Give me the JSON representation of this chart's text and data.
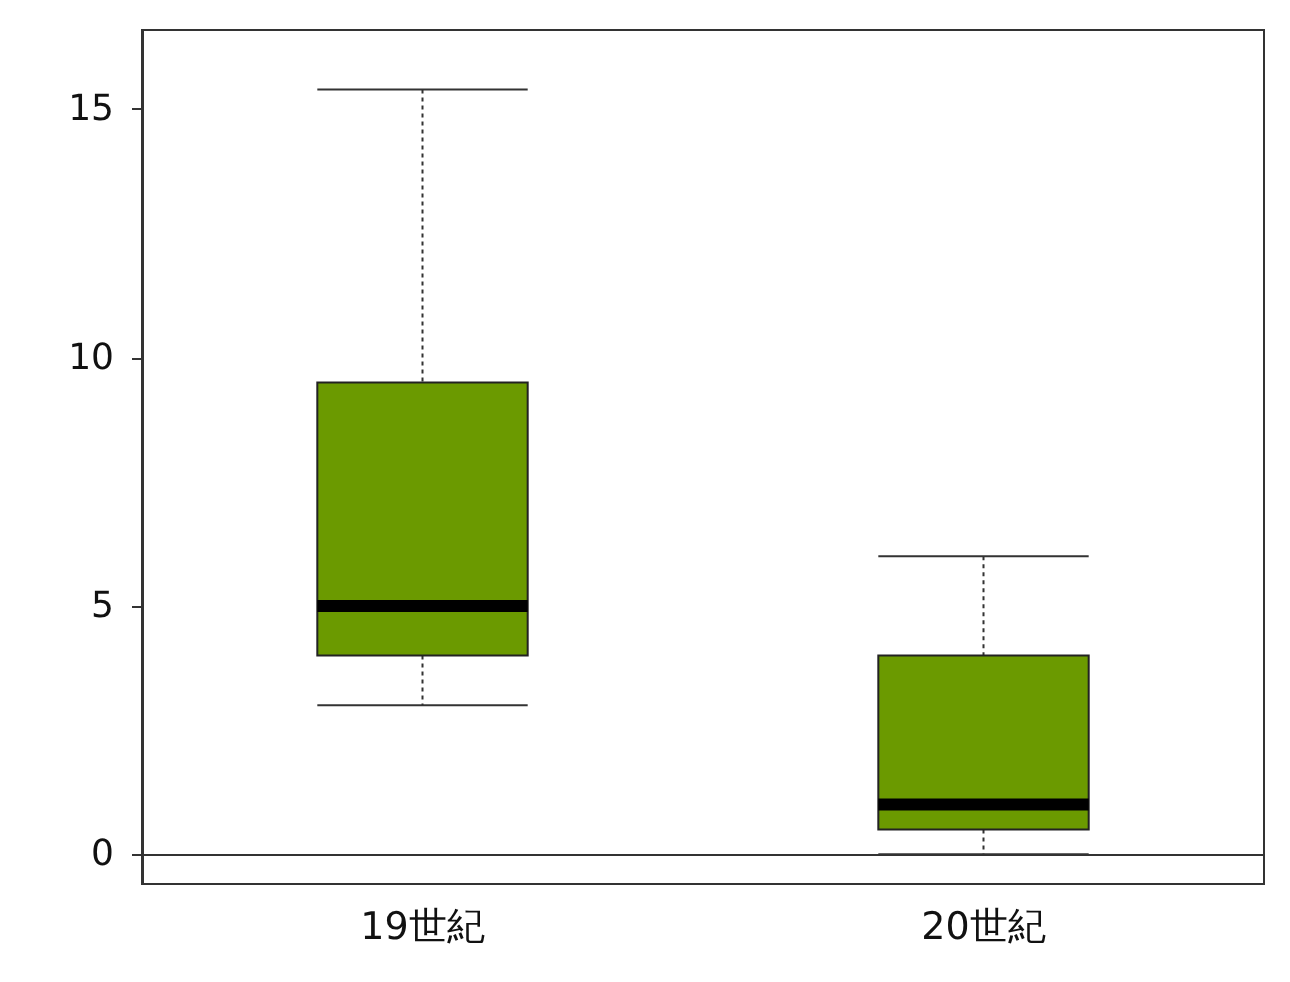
{
  "chart_data": {
    "type": "box",
    "categories": [
      "19世紀",
      "20世紀"
    ],
    "color": "#6b9a00",
    "line_style": "dotted",
    "boxes": [
      {
        "low": 3,
        "q1": 4,
        "median": 5,
        "q3": 9.5,
        "high": 15.4
      },
      {
        "low": 0,
        "q1": 0.5,
        "median": 1,
        "q3": 4,
        "high": 6
      }
    ],
    "ylim": [
      -0.6,
      16.6
    ],
    "yticks": [
      0,
      5,
      10,
      15
    ]
  }
}
